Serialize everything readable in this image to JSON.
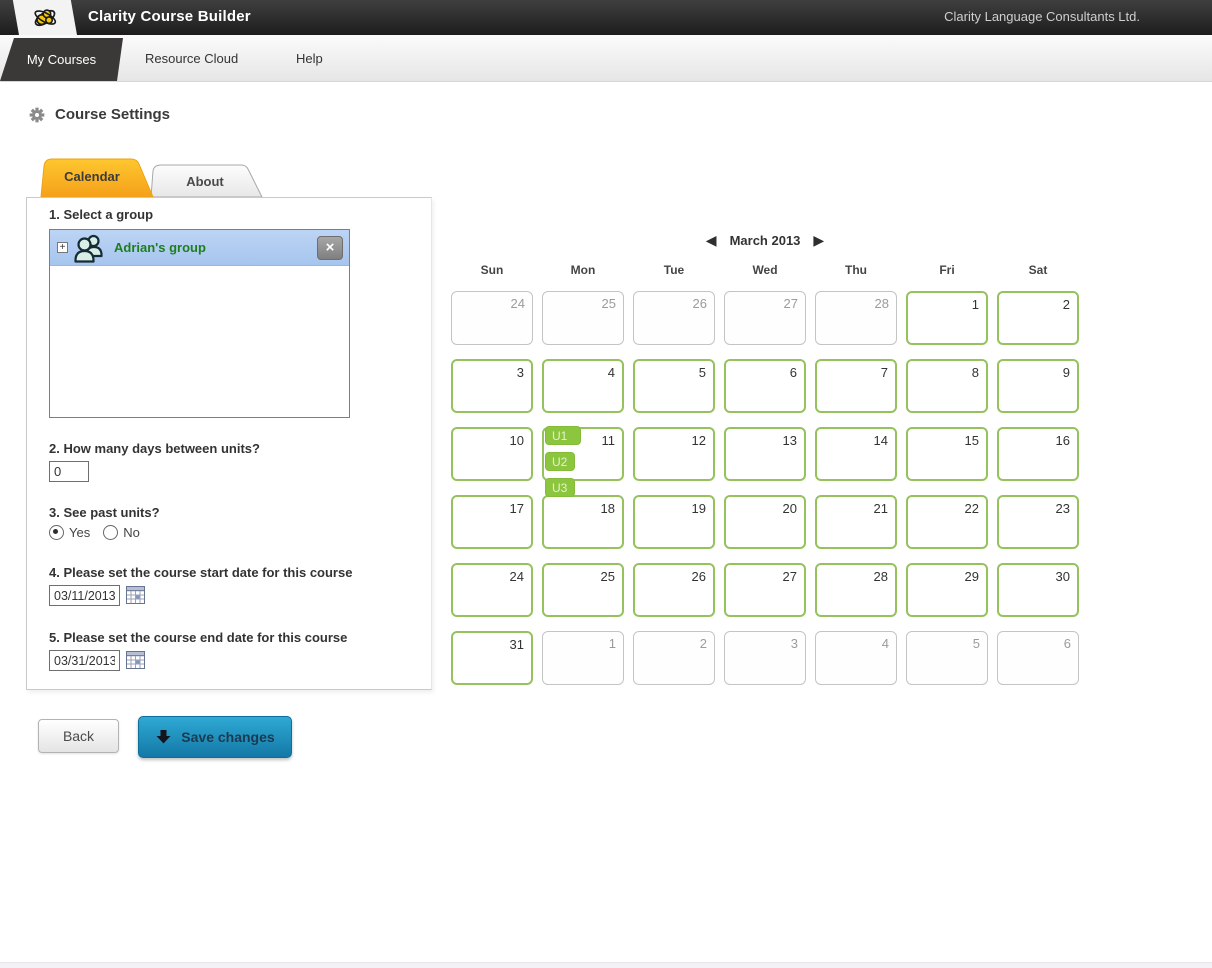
{
  "header": {
    "app_title": "Clarity Course Builder",
    "company": "Clarity Language Consultants Ltd."
  },
  "nav": {
    "items": [
      {
        "label": "My Courses",
        "active": true
      },
      {
        "label": "Resource Cloud",
        "active": false
      },
      {
        "label": "Help",
        "active": false
      }
    ]
  },
  "page": {
    "title": "Course Settings"
  },
  "tabs": [
    {
      "label": "Calendar",
      "active": true
    },
    {
      "label": "About",
      "active": false
    }
  ],
  "form": {
    "q1_label": "1. Select a group",
    "group_name": "Adrian's group",
    "q2_label": "2. How many days between units?",
    "days_value": "0",
    "q3_label": "3. See past units?",
    "radio_yes_label": "Yes",
    "radio_no_label": "No",
    "see_past_units_selected": "Yes",
    "q4_label": "4. Please set the course start date for this course",
    "start_date": "03/11/2013",
    "q5_label": "5. Please set the course end date for this course",
    "end_date": "03/31/2013"
  },
  "buttons": {
    "back_label": "Back",
    "save_label": "Save changes"
  },
  "calendar": {
    "month_label": "March 2013",
    "weekdays": [
      "Sun",
      "Mon",
      "Tue",
      "Wed",
      "Thu",
      "Fri",
      "Sat"
    ],
    "weeks": [
      [
        {
          "d": 24,
          "o": 1
        },
        {
          "d": 25,
          "o": 1
        },
        {
          "d": 26,
          "o": 1
        },
        {
          "d": 27,
          "o": 1
        },
        {
          "d": 28,
          "o": 1
        },
        {
          "d": 1
        },
        {
          "d": 2
        }
      ],
      [
        {
          "d": 3
        },
        {
          "d": 4
        },
        {
          "d": 5
        },
        {
          "d": 6
        },
        {
          "d": 7
        },
        {
          "d": 8
        },
        {
          "d": 9
        }
      ],
      [
        {
          "d": 10
        },
        {
          "d": 11,
          "badges": [
            "U1",
            "U2",
            "U3"
          ]
        },
        {
          "d": 12
        },
        {
          "d": 13
        },
        {
          "d": 14
        },
        {
          "d": 15
        },
        {
          "d": 16
        }
      ],
      [
        {
          "d": 17
        },
        {
          "d": 18
        },
        {
          "d": 19
        },
        {
          "d": 20
        },
        {
          "d": 21
        },
        {
          "d": 22
        },
        {
          "d": 23
        }
      ],
      [
        {
          "d": 24
        },
        {
          "d": 25
        },
        {
          "d": 26
        },
        {
          "d": 27
        },
        {
          "d": 28
        },
        {
          "d": 29
        },
        {
          "d": 30
        }
      ],
      [
        {
          "d": 31
        },
        {
          "d": 1,
          "o": 1
        },
        {
          "d": 2,
          "o": 1
        },
        {
          "d": 3,
          "o": 1
        },
        {
          "d": 4,
          "o": 1
        },
        {
          "d": 5,
          "o": 1
        },
        {
          "d": 6,
          "o": 1
        }
      ]
    ]
  },
  "icons": {
    "logo": "bee-icon",
    "settings": "gear-icon",
    "group": "people-icon",
    "close_glyph": "×",
    "expand_glyph": "+",
    "prev_month_glyph": "◀",
    "next_month_glyph": "▶",
    "save_arrow": "down-arrow-icon",
    "date_picker": "calendar-grid-icon"
  },
  "colors": {
    "header_dark": "#2d2d2d",
    "active_tab_yellow": "#f9b322",
    "save_blue": "#2196c4",
    "cell_green_border": "#96c25d",
    "badge_green": "#8cc63f",
    "selected_row_blue": "#aecaef",
    "group_name_green": "#1e7e1e"
  }
}
